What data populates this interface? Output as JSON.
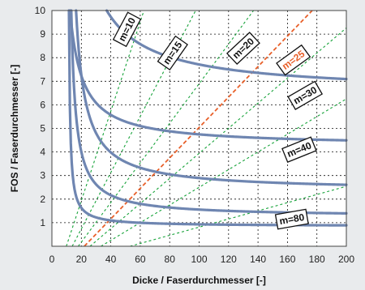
{
  "chart_data": {
    "type": "line",
    "title": "",
    "xlabel": "Dicke / Faserdurchmesser [-]",
    "ylabel": "FOS / Faserdurchmesser [-]",
    "xlim": [
      0,
      200
    ],
    "ylim": [
      0,
      10
    ],
    "x_ticks": [
      0,
      20,
      40,
      60,
      80,
      100,
      120,
      140,
      160,
      180,
      200
    ],
    "y_ticks": [
      1,
      2,
      3,
      4,
      5,
      6,
      7,
      8,
      9,
      10
    ],
    "grid": true,
    "colors": {
      "curve": "#6f86b1",
      "dashed": "#17a33a",
      "highlight": "#e8602a",
      "background": "#e9ebed",
      "plot_bg": "#ffffff"
    },
    "dashed_lines": [
      {
        "label": "m=10",
        "slope": 0.1897,
        "x0": 9.8,
        "color": "#17a33a"
      },
      {
        "label": "m=15",
        "slope": 0.1193,
        "x0": 13.8,
        "color": "#17a33a"
      },
      {
        "label": "m=20",
        "slope": 0.084,
        "x0": 17.9,
        "color": "#17a33a"
      },
      {
        "label": "m=25",
        "slope": 0.0646,
        "x0": 22.0,
        "color": "#e8602a"
      },
      {
        "label": "m=30",
        "slope": 0.0532,
        "x0": 25.9,
        "color": "#17a33a"
      },
      {
        "label": "m=40",
        "slope": 0.0375,
        "x0": 33.3,
        "color": "#17a33a"
      },
      {
        "label": "m=80",
        "slope": 0.0173,
        "x0": 53.1,
        "color": "#17a33a"
      }
    ],
    "curves": [
      {
        "a": 6.5,
        "b": 116.3,
        "x0": 4.0
      },
      {
        "a": 4.25,
        "b": 47.7,
        "x0": 4.0
      },
      {
        "a": 2.35,
        "b": 49.0,
        "x0": 10.0
      },
      {
        "a": 1.25,
        "b": 27.5,
        "x0": 10.0
      },
      {
        "a": 0.85,
        "b": 7.17,
        "x0": 10.8
      }
    ],
    "labels": [
      {
        "text": "m=10",
        "x": 51,
        "y": 9.2,
        "angle": -62,
        "color": "#111"
      },
      {
        "text": "m=15",
        "x": 82,
        "y": 8.2,
        "angle": -55,
        "color": "#111"
      },
      {
        "text": "m=20",
        "x": 130,
        "y": 8.4,
        "angle": -43,
        "color": "#111"
      },
      {
        "text": "m=25",
        "x": 164,
        "y": 7.9,
        "angle": -36,
        "color": "#e8602a"
      },
      {
        "text": "m=30",
        "x": 172,
        "y": 6.4,
        "angle": -30,
        "color": "#111"
      },
      {
        "text": "m=40",
        "x": 168,
        "y": 4.1,
        "angle": -22,
        "color": "#111"
      },
      {
        "text": "m=80",
        "x": 163,
        "y": 1.15,
        "angle": -10,
        "color": "#111"
      }
    ]
  }
}
